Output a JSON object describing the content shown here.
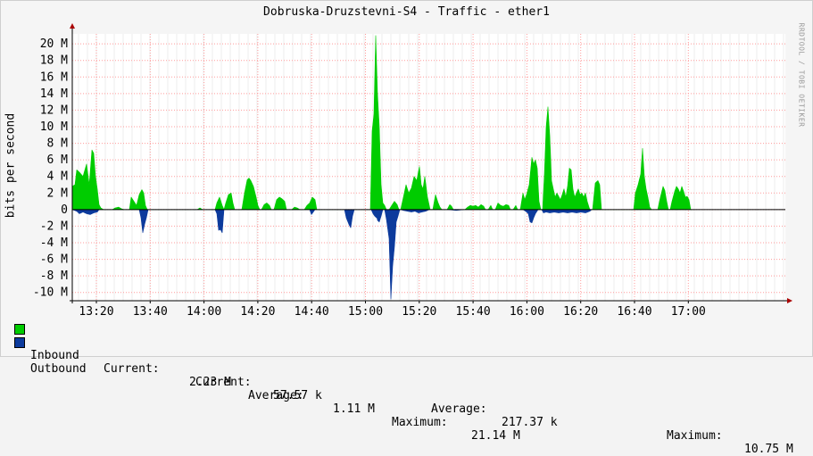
{
  "chart_data": {
    "type": "area",
    "title": "Dobruska-Druzstevni-S4 - Traffic - ether1",
    "ylabel": "bits per second",
    "watermark": "RRDTOOL / TOBI OETIKER",
    "x_ticks": [
      "13:20",
      "13:40",
      "14:00",
      "14:20",
      "14:40",
      "15:00",
      "15:20",
      "15:40",
      "16:00",
      "16:20",
      "16:40",
      "17:00"
    ],
    "y_ticks": [
      "20 M",
      "18 M",
      "16 M",
      "14 M",
      "12 M",
      "10 M",
      "8 M",
      "6 M",
      "4 M",
      "2 M",
      "0",
      "-2 M",
      "-4 M",
      "-6 M",
      "-8 M",
      "-10 M"
    ],
    "ylim": [
      -11,
      21.2
    ],
    "grid": true,
    "series": [
      {
        "name": "Inbound",
        "color": "#00cc00",
        "values": [
          [
            0,
            2.8
          ],
          [
            3,
            3.0
          ],
          [
            5,
            4.8
          ],
          [
            8,
            4.5
          ],
          [
            12,
            4.0
          ],
          [
            16,
            5.5
          ],
          [
            19,
            3.0
          ],
          [
            22,
            7.2
          ],
          [
            24,
            6.8
          ],
          [
            26,
            4.0
          ],
          [
            28,
            2.5
          ],
          [
            30,
            0.6
          ],
          [
            32,
            0.2
          ],
          [
            35,
            0
          ],
          [
            45,
            0
          ],
          [
            48,
            0.2
          ],
          [
            52,
            0.3
          ],
          [
            55,
            0.1
          ],
          [
            58,
            0
          ],
          [
            64,
            0
          ],
          [
            66,
            1.5
          ],
          [
            69,
            1.0
          ],
          [
            72,
            0.5
          ],
          [
            75,
            1.8
          ],
          [
            78,
            2.4
          ],
          [
            80,
            2.0
          ],
          [
            82,
            0.5
          ],
          [
            84,
            0
          ],
          [
            140,
            0
          ],
          [
            143,
            0.2
          ],
          [
            146,
            0
          ],
          [
            160,
            0
          ],
          [
            162,
            0.8
          ],
          [
            165,
            1.5
          ],
          [
            168,
            0.5
          ],
          [
            170,
            0
          ],
          [
            172,
            0.8
          ],
          [
            175,
            1.8
          ],
          [
            178,
            2.0
          ],
          [
            180,
            0.8
          ],
          [
            182,
            0
          ],
          [
            190,
            0
          ],
          [
            193,
            2.0
          ],
          [
            196,
            3.6
          ],
          [
            198,
            3.8
          ],
          [
            200,
            3.5
          ],
          [
            203,
            2.8
          ],
          [
            206,
            1.5
          ],
          [
            208,
            0.5
          ],
          [
            210,
            0
          ],
          [
            212,
            0
          ],
          [
            215,
            0.6
          ],
          [
            218,
            0.8
          ],
          [
            221,
            0.5
          ],
          [
            223,
            0
          ],
          [
            226,
            0
          ],
          [
            229,
            1.2
          ],
          [
            232,
            1.5
          ],
          [
            235,
            1.3
          ],
          [
            238,
            1.0
          ],
          [
            240,
            0
          ],
          [
            246,
            0
          ],
          [
            249,
            0.3
          ],
          [
            252,
            0.2
          ],
          [
            255,
            0
          ],
          [
            260,
            0
          ],
          [
            263,
            0.5
          ],
          [
            266,
            0.8
          ],
          [
            269,
            1.5
          ],
          [
            272,
            1.2
          ],
          [
            274,
            0
          ],
          [
            334,
            0
          ],
          [
            336,
            9.5
          ],
          [
            338,
            11.5
          ],
          [
            340,
            21.0
          ],
          [
            342,
            14.0
          ],
          [
            344,
            10.0
          ],
          [
            346,
            3.0
          ],
          [
            348,
            0.8
          ],
          [
            350,
            0.5
          ],
          [
            352,
            0
          ],
          [
            355,
            0
          ],
          [
            358,
            0.5
          ],
          [
            361,
            1.0
          ],
          [
            364,
            0.6
          ],
          [
            366,
            0
          ],
          [
            368,
            0
          ],
          [
            371,
            1.5
          ],
          [
            374,
            3.0
          ],
          [
            377,
            2.0
          ],
          [
            380,
            2.6
          ],
          [
            383,
            4.0
          ],
          [
            386,
            3.5
          ],
          [
            389,
            5.2
          ],
          [
            391,
            3.0
          ],
          [
            393,
            2.5
          ],
          [
            395,
            4.0
          ],
          [
            398,
            1.5
          ],
          [
            401,
            0
          ],
          [
            404,
            0
          ],
          [
            407,
            1.8
          ],
          [
            410,
            0.8
          ],
          [
            412,
            0.3
          ],
          [
            414,
            0
          ],
          [
            420,
            0
          ],
          [
            423,
            0.6
          ],
          [
            425,
            0.4
          ],
          [
            427,
            0
          ],
          [
            440,
            0
          ],
          [
            443,
            0.3
          ],
          [
            446,
            0.5
          ],
          [
            449,
            0.4
          ],
          [
            452,
            0.5
          ],
          [
            455,
            0.3
          ],
          [
            458,
            0.6
          ],
          [
            461,
            0.4
          ],
          [
            463,
            0
          ],
          [
            466,
            0
          ],
          [
            469,
            0.5
          ],
          [
            471,
            0
          ],
          [
            474,
            0
          ],
          [
            477,
            0.8
          ],
          [
            480,
            0.5
          ],
          [
            483,
            0.4
          ],
          [
            486,
            0.6
          ],
          [
            489,
            0.5
          ],
          [
            491,
            0
          ],
          [
            494,
            0
          ],
          [
            497,
            0.5
          ],
          [
            499,
            0
          ],
          [
            502,
            0
          ],
          [
            505,
            2.0
          ],
          [
            507,
            1.2
          ],
          [
            509,
            1.8
          ],
          [
            512,
            3.0
          ],
          [
            515,
            6.3
          ],
          [
            517,
            5.5
          ],
          [
            519,
            6.0
          ],
          [
            521,
            5.0
          ],
          [
            523,
            1.0
          ],
          [
            525,
            0
          ],
          [
            527,
            0
          ],
          [
            529,
            4.2
          ],
          [
            531,
            10.0
          ],
          [
            533,
            12.4
          ],
          [
            535,
            9.0
          ],
          [
            537,
            3.5
          ],
          [
            539,
            2.5
          ],
          [
            541,
            1.5
          ],
          [
            543,
            2.0
          ],
          [
            545,
            1.6
          ],
          [
            547,
            1.2
          ],
          [
            549,
            1.8
          ],
          [
            551,
            2.5
          ],
          [
            553,
            1.5
          ],
          [
            555,
            2.8
          ],
          [
            557,
            5.0
          ],
          [
            559,
            4.8
          ],
          [
            561,
            2.5
          ],
          [
            563,
            1.5
          ],
          [
            565,
            2.0
          ],
          [
            567,
            2.5
          ],
          [
            569,
            1.8
          ],
          [
            571,
            2.0
          ],
          [
            573,
            1.5
          ],
          [
            575,
            2.0
          ],
          [
            577,
            1.0
          ],
          [
            579,
            0.3
          ],
          [
            580,
            0
          ],
          [
            583,
            0
          ],
          [
            586,
            3.2
          ],
          [
            589,
            3.5
          ],
          [
            591,
            3.0
          ],
          [
            593,
            0
          ],
          [
            629,
            0
          ],
          [
            631,
            2.0
          ],
          [
            634,
            3.0
          ],
          [
            637,
            4.3
          ],
          [
            639,
            7.4
          ],
          [
            641,
            4.0
          ],
          [
            643,
            2.5
          ],
          [
            645,
            1.5
          ],
          [
            647,
            0.3
          ],
          [
            649,
            0
          ],
          [
            656,
            0
          ],
          [
            659,
            1.5
          ],
          [
            662,
            2.8
          ],
          [
            664,
            2.3
          ],
          [
            666,
            1.0
          ],
          [
            668,
            0
          ],
          [
            670,
            0
          ],
          [
            672,
            1.0
          ],
          [
            675,
            2.2
          ],
          [
            677,
            2.8
          ],
          [
            679,
            2.5
          ],
          [
            681,
            2.0
          ],
          [
            683,
            2.8
          ],
          [
            685,
            2.2
          ],
          [
            687,
            1.5
          ],
          [
            689,
            1.6
          ],
          [
            691,
            1.2
          ],
          [
            693,
            0
          ],
          [
            695,
            0
          ]
        ]
      },
      {
        "name": "Outbound",
        "color": "#0c3a9c",
        "values": [
          [
            0,
            0
          ],
          [
            5,
            -0.2
          ],
          [
            8,
            -0.5
          ],
          [
            12,
            -0.3
          ],
          [
            16,
            -0.5
          ],
          [
            20,
            -0.6
          ],
          [
            24,
            -0.4
          ],
          [
            28,
            -0.3
          ],
          [
            30,
            0
          ],
          [
            75,
            0
          ],
          [
            77,
            -1.0
          ],
          [
            79,
            -2.8
          ],
          [
            81,
            -1.8
          ],
          [
            83,
            -1.0
          ],
          [
            85,
            0
          ],
          [
            160,
            0
          ],
          [
            162,
            -0.5
          ],
          [
            164,
            -2.5
          ],
          [
            166,
            -2.4
          ],
          [
            168,
            -2.8
          ],
          [
            170,
            0
          ],
          [
            335,
            0
          ],
          [
            337,
            -0.5
          ],
          [
            339,
            -0.8
          ],
          [
            341,
            -1.0
          ],
          [
            343,
            -1.2
          ],
          [
            345,
            -0.8
          ],
          [
            347,
            0
          ],
          [
            266,
            0
          ],
          [
            268,
            -0.6
          ],
          [
            270,
            -0.3
          ],
          [
            272,
            0
          ],
          [
            305,
            0
          ],
          [
            307,
            -1.0
          ],
          [
            310,
            -1.8
          ],
          [
            312,
            -2.2
          ],
          [
            314,
            -0.8
          ],
          [
            316,
            0
          ],
          [
            340,
            0
          ],
          [
            342,
            -1.3
          ],
          [
            344,
            -1.5
          ],
          [
            346,
            -0.8
          ],
          [
            348,
            0
          ],
          [
            350,
            0
          ],
          [
            352,
            -1.2
          ],
          [
            355,
            -3.5
          ],
          [
            357,
            -10.8
          ],
          [
            359,
            -6.8
          ],
          [
            361,
            -4.5
          ],
          [
            363,
            -1.5
          ],
          [
            365,
            -0.8
          ],
          [
            367,
            0
          ],
          [
            368,
            0
          ],
          [
            371,
            -0.1
          ],
          [
            380,
            -0.3
          ],
          [
            384,
            -0.2
          ],
          [
            388,
            -0.4
          ],
          [
            392,
            -0.3
          ],
          [
            396,
            -0.2
          ],
          [
            400,
            0
          ],
          [
            420,
            0
          ],
          [
            430,
            -0.1
          ],
          [
            440,
            0
          ],
          [
            505,
            0
          ],
          [
            508,
            -0.2
          ],
          [
            511,
            -0.5
          ],
          [
            513,
            -1.5
          ],
          [
            515,
            -1.6
          ],
          [
            517,
            -1.0
          ],
          [
            519,
            -0.5
          ],
          [
            522,
            0
          ],
          [
            526,
            0
          ],
          [
            528,
            -0.4
          ],
          [
            531,
            -0.3
          ],
          [
            535,
            -0.4
          ],
          [
            540,
            -0.3
          ],
          [
            545,
            -0.4
          ],
          [
            550,
            -0.3
          ],
          [
            555,
            -0.4
          ],
          [
            560,
            -0.3
          ],
          [
            565,
            -0.4
          ],
          [
            570,
            -0.3
          ],
          [
            575,
            -0.4
          ],
          [
            580,
            -0.2
          ],
          [
            582,
            0
          ]
        ]
      }
    ],
    "legend": {
      "inbound": {
        "label": "Inbound",
        "current_label": "Current:",
        "current": "2.23 M",
        "average_label": "Average:",
        "average": "1.11 M",
        "maximum_label": "Maximum:",
        "maximum": "21.14 M"
      },
      "outbound": {
        "label": "Outbound",
        "current_label": "Current:",
        "current": "57.57 k",
        "average_label": "Average:",
        "average": "217.37 k",
        "maximum_label": "Maximum:",
        "maximum": "10.75 M"
      }
    }
  }
}
